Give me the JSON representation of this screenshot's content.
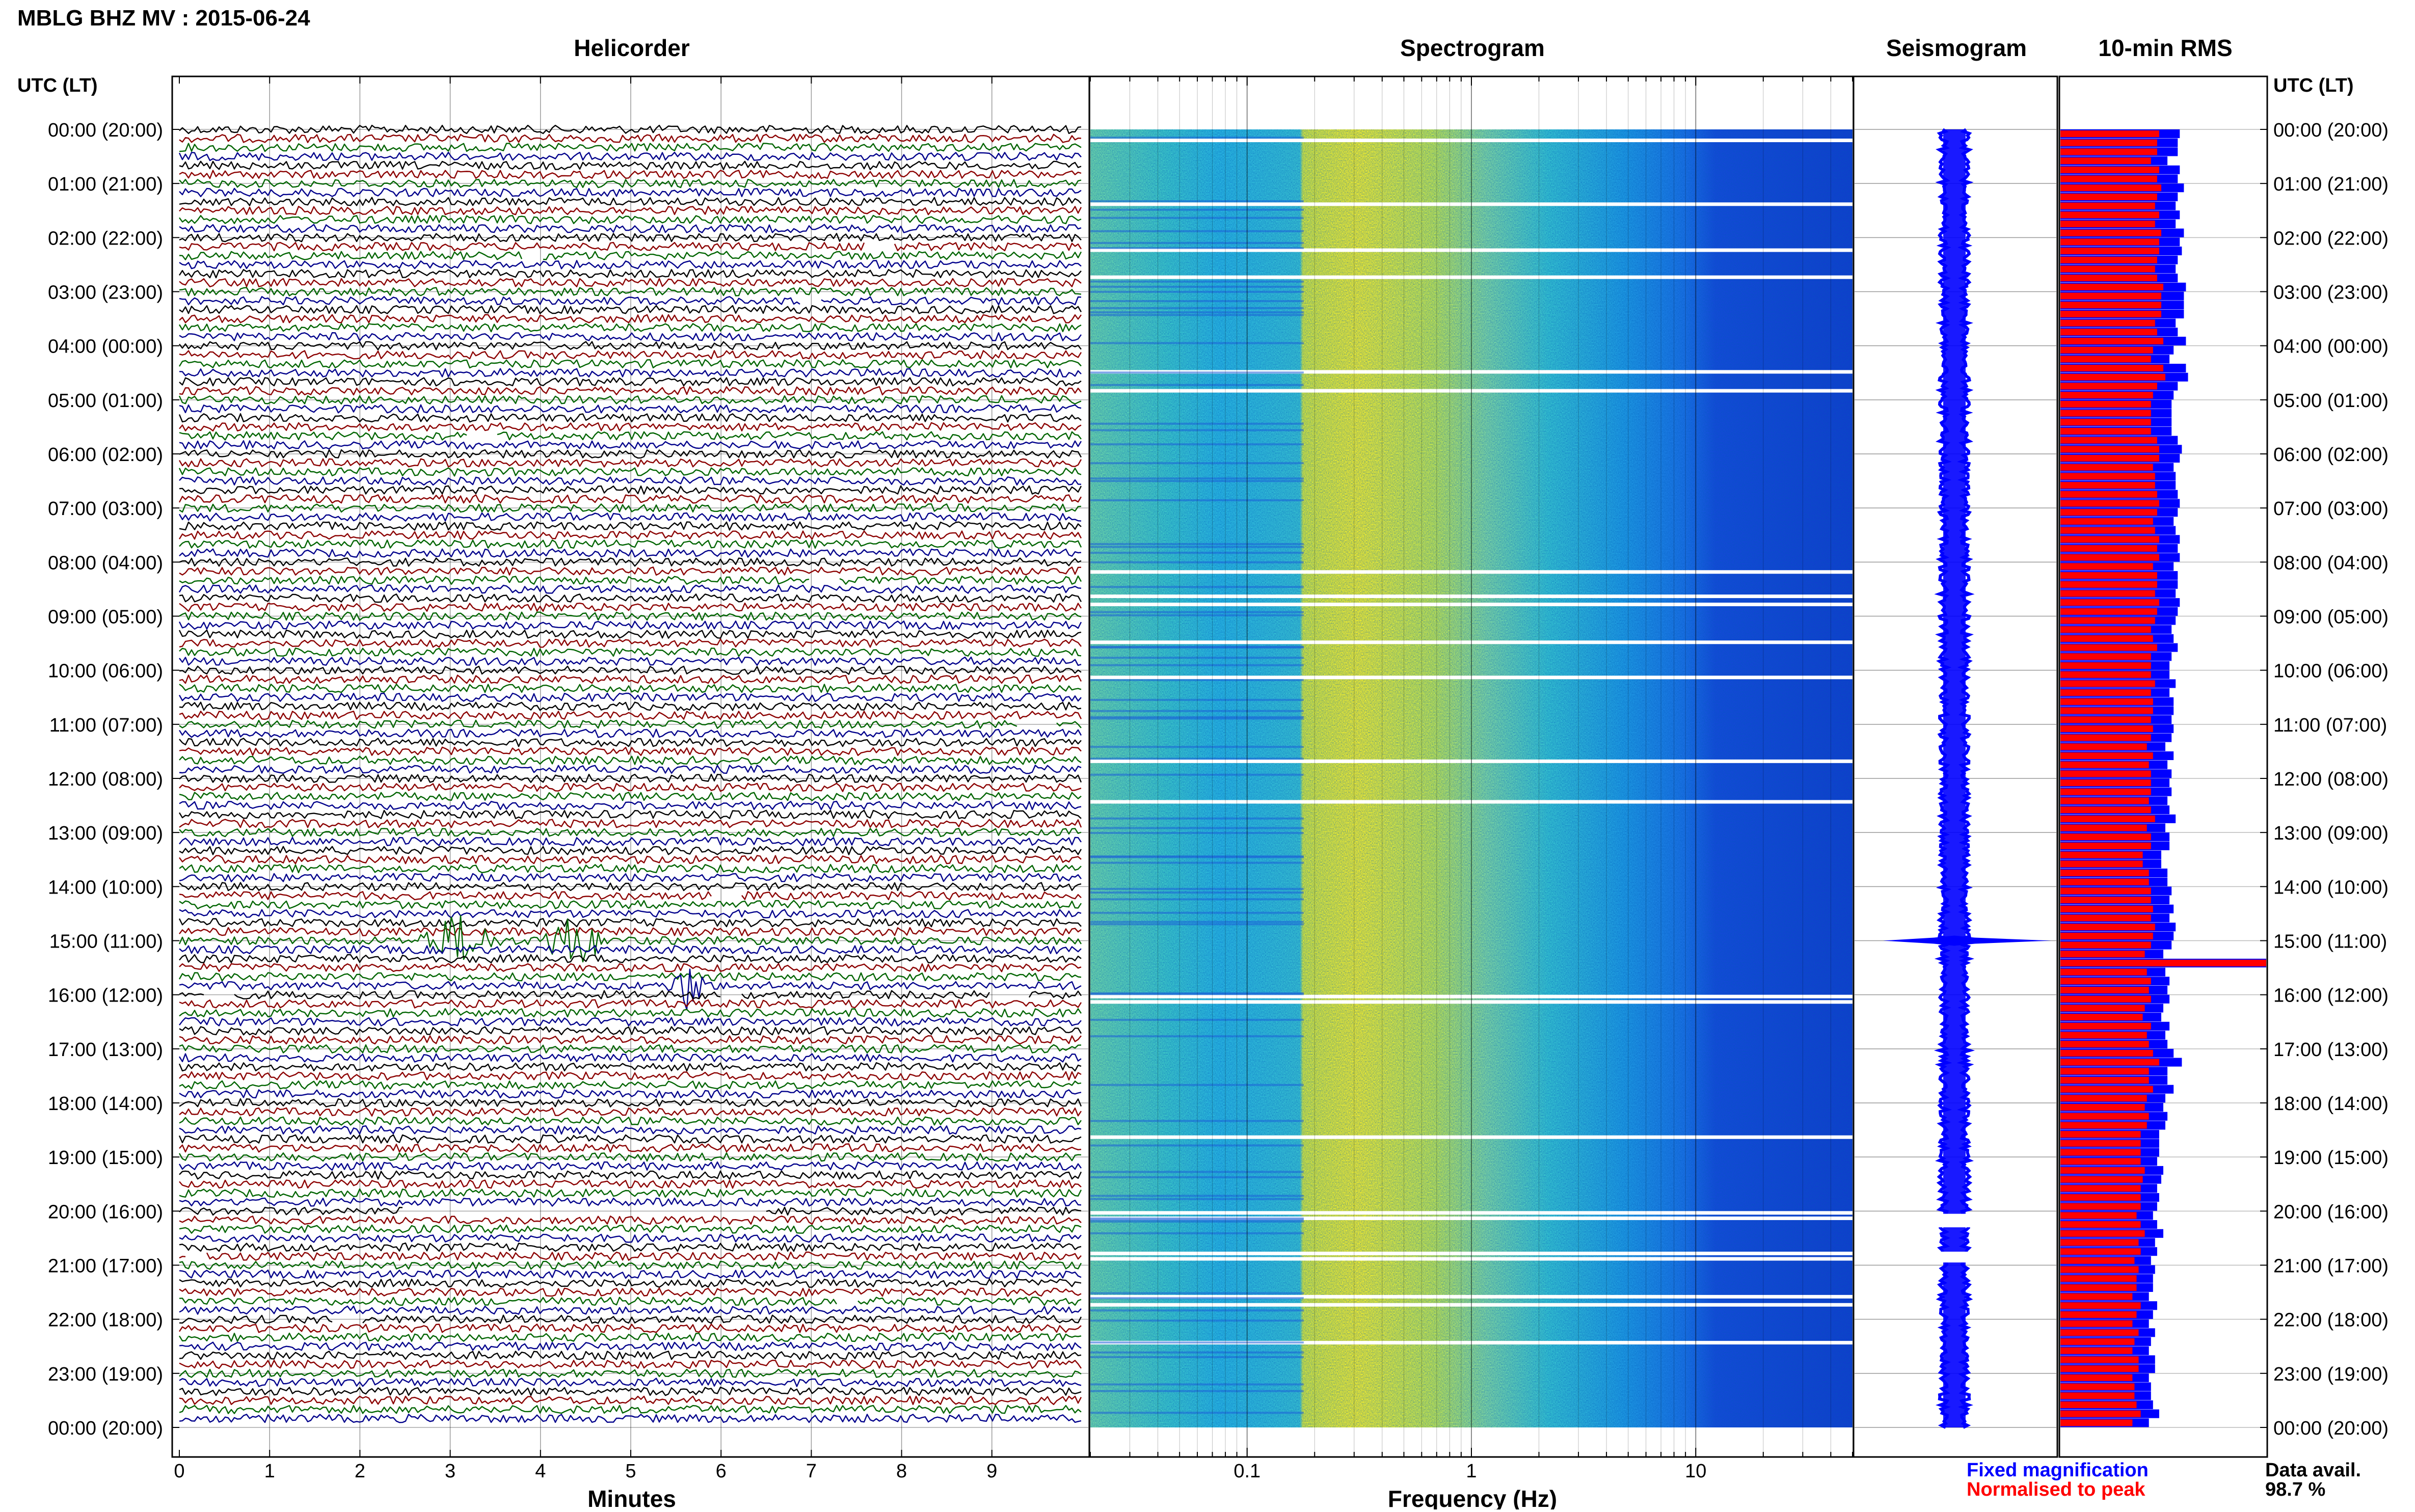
{
  "page": {
    "title": "MBLG BHZ MV : 2015-06-24",
    "utc_header_left": "UTC (LT)",
    "utc_header_right": "UTC (LT)",
    "panel_titles": [
      "Helicorder",
      "Spectrogram",
      "Seismogram",
      "10-min RMS"
    ],
    "legend_fixed": "Fixed magnification",
    "legend_normalised": "Normalised to peak",
    "data_avail_label": "Data avail.",
    "data_avail_value": "98.7 %"
  },
  "colors": {
    "helicorder_traces": [
      "#000000",
      "#8b0000",
      "#006400",
      "#00008b"
    ],
    "rms_fixed": "#0000ff",
    "rms_normalised": "#ff0000",
    "seismogram": "#0000ff",
    "legend_fixed": "#0000ff",
    "legend_normalised": "#ff0000"
  },
  "chart_data": [
    {
      "type": "line",
      "name": "Helicorder",
      "title": "Helicorder",
      "xlabel": "Minutes",
      "xlim": [
        0,
        10
      ],
      "x_ticks": [
        "0",
        "1",
        "2",
        "3",
        "4",
        "5",
        "6",
        "7",
        "8",
        "9"
      ],
      "y_ticks": [
        "00:00 (20:00)",
        "01:00 (21:00)",
        "02:00 (22:00)",
        "03:00 (23:00)",
        "04:00 (00:00)",
        "05:00 (01:00)",
        "06:00 (02:00)",
        "07:00 (03:00)",
        "08:00 (04:00)",
        "09:00 (05:00)",
        "10:00 (06:00)",
        "11:00 (07:00)",
        "12:00 (08:00)",
        "13:00 (09:00)",
        "14:00 (10:00)",
        "15:00 (11:00)",
        "16:00 (12:00)",
        "17:00 (13:00)",
        "18:00 (14:00)",
        "19:00 (15:00)",
        "20:00 (16:00)",
        "21:00 (17:00)",
        "22:00 (18:00)",
        "23:00 (19:00)",
        "00:00 (20:00)"
      ],
      "traces": 144,
      "events": [
        {
          "hour": 15.0,
          "minute_start": 2.6,
          "minute_end": 3.6
        },
        {
          "hour": 15.0,
          "minute_start": 3.9,
          "minute_end": 4.8
        },
        {
          "hour": 15.85,
          "minute_start": 5.4,
          "minute_end": 5.9
        }
      ]
    },
    {
      "type": "heatmap",
      "name": "Spectrogram",
      "title": "Spectrogram",
      "xlabel": "Frequency (Hz)",
      "x_scale": "log",
      "xlim": [
        0.02,
        50
      ],
      "x_ticks": [
        "0.1",
        "1",
        "10"
      ],
      "peak_band_hz": [
        0.2,
        1.0
      ]
    },
    {
      "type": "line",
      "name": "Seismogram",
      "title": "Seismogram",
      "event_hour": 15.0
    },
    {
      "type": "bar",
      "name": "10-min RMS",
      "title": "10-min RMS",
      "orientation": "horizontal",
      "series": [
        {
          "name": "Fixed magnification",
          "values": [
            0.58,
            0.57,
            0.57,
            0.52,
            0.58,
            0.57,
            0.6,
            0.57,
            0.56,
            0.58,
            0.56,
            0.6,
            0.58,
            0.59,
            0.57,
            0.56,
            0.57,
            0.61,
            0.6,
            0.6,
            0.6,
            0.56,
            0.57,
            0.61,
            0.55,
            0.53,
            0.61,
            0.62,
            0.57,
            0.55,
            0.54,
            0.54,
            0.54,
            0.54,
            0.57,
            0.59,
            0.58,
            0.55,
            0.56,
            0.56,
            0.57,
            0.58,
            0.57,
            0.55,
            0.56,
            0.58,
            0.57,
            0.58,
            0.55,
            0.57,
            0.57,
            0.56,
            0.58,
            0.57,
            0.56,
            0.54,
            0.55,
            0.57,
            0.54,
            0.53,
            0.53,
            0.56,
            0.53,
            0.55,
            0.55,
            0.54,
            0.55,
            0.54,
            0.51,
            0.55,
            0.52,
            0.54,
            0.53,
            0.54,
            0.52,
            0.53,
            0.56,
            0.51,
            0.53,
            0.53,
            0.49,
            0.49,
            0.52,
            0.52,
            0.54,
            0.53,
            0.55,
            0.53,
            0.56,
            0.55,
            0.54,
            0.5,
            1.0,
            0.51,
            0.53,
            0.52,
            0.53,
            0.5,
            0.49,
            0.53,
            0.51,
            0.52,
            0.55,
            0.59,
            0.52,
            0.52,
            0.55,
            0.51,
            0.5,
            0.52,
            0.51,
            0.48,
            0.48,
            0.48,
            0.47,
            0.5,
            0.49,
            0.47,
            0.48,
            0.47,
            0.45,
            0.47,
            0.5,
            0.46,
            0.47,
            0.44,
            0.46,
            0.45,
            0.45,
            0.43,
            0.47,
            0.45,
            0.43,
            0.46,
            0.44,
            0.43,
            0.46,
            0.46,
            0.43,
            0.44,
            0.44,
            0.45,
            0.48,
            0.43
          ]
        },
        {
          "name": "Normalised to peak",
          "values": [
            0.48,
            0.47,
            0.47,
            0.44,
            0.48,
            0.47,
            0.49,
            0.47,
            0.46,
            0.48,
            0.46,
            0.49,
            0.48,
            0.48,
            0.47,
            0.46,
            0.47,
            0.5,
            0.49,
            0.49,
            0.49,
            0.46,
            0.47,
            0.5,
            0.45,
            0.44,
            0.5,
            0.51,
            0.47,
            0.45,
            0.44,
            0.44,
            0.44,
            0.44,
            0.47,
            0.48,
            0.48,
            0.45,
            0.46,
            0.46,
            0.47,
            0.48,
            0.47,
            0.45,
            0.46,
            0.48,
            0.47,
            0.48,
            0.45,
            0.47,
            0.47,
            0.46,
            0.48,
            0.47,
            0.46,
            0.44,
            0.45,
            0.47,
            0.44,
            0.44,
            0.44,
            0.46,
            0.44,
            0.45,
            0.45,
            0.44,
            0.45,
            0.44,
            0.42,
            0.45,
            0.43,
            0.44,
            0.44,
            0.44,
            0.43,
            0.44,
            0.46,
            0.42,
            0.44,
            0.44,
            0.4,
            0.4,
            0.43,
            0.43,
            0.44,
            0.44,
            0.45,
            0.44,
            0.46,
            0.45,
            0.44,
            0.41,
            1.0,
            0.42,
            0.44,
            0.43,
            0.44,
            0.41,
            0.4,
            0.44,
            0.42,
            0.43,
            0.45,
            0.48,
            0.43,
            0.43,
            0.45,
            0.42,
            0.41,
            0.43,
            0.42,
            0.39,
            0.39,
            0.39,
            0.39,
            0.41,
            0.4,
            0.39,
            0.39,
            0.39,
            0.37,
            0.39,
            0.41,
            0.38,
            0.39,
            0.36,
            0.38,
            0.37,
            0.37,
            0.35,
            0.39,
            0.37,
            0.35,
            0.38,
            0.36,
            0.35,
            0.38,
            0.38,
            0.35,
            0.36,
            0.36,
            0.37,
            0.39,
            0.35
          ]
        }
      ]
    }
  ]
}
